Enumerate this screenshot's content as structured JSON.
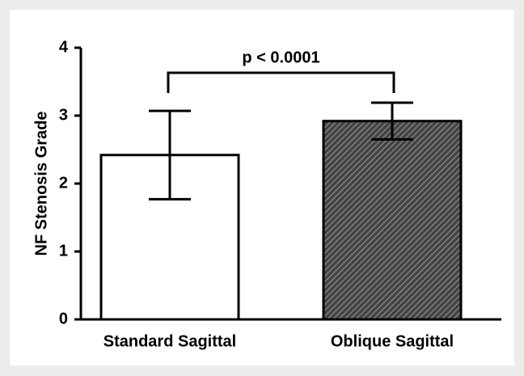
{
  "chart_data": {
    "type": "bar",
    "categories": [
      "Standard Sagittal",
      "Oblique Sagittal"
    ],
    "values": [
      2.42,
      2.92
    ],
    "errors": [
      0.65,
      0.27
    ],
    "colors": [
      "#ffffff",
      "#444444"
    ],
    "hatch": [
      false,
      true
    ],
    "ylabel": "NF Stenosis Grade",
    "ylim": [
      0,
      4
    ],
    "yticks": [
      0,
      1,
      2,
      3,
      4
    ],
    "annotation": "p < 0.0001"
  }
}
